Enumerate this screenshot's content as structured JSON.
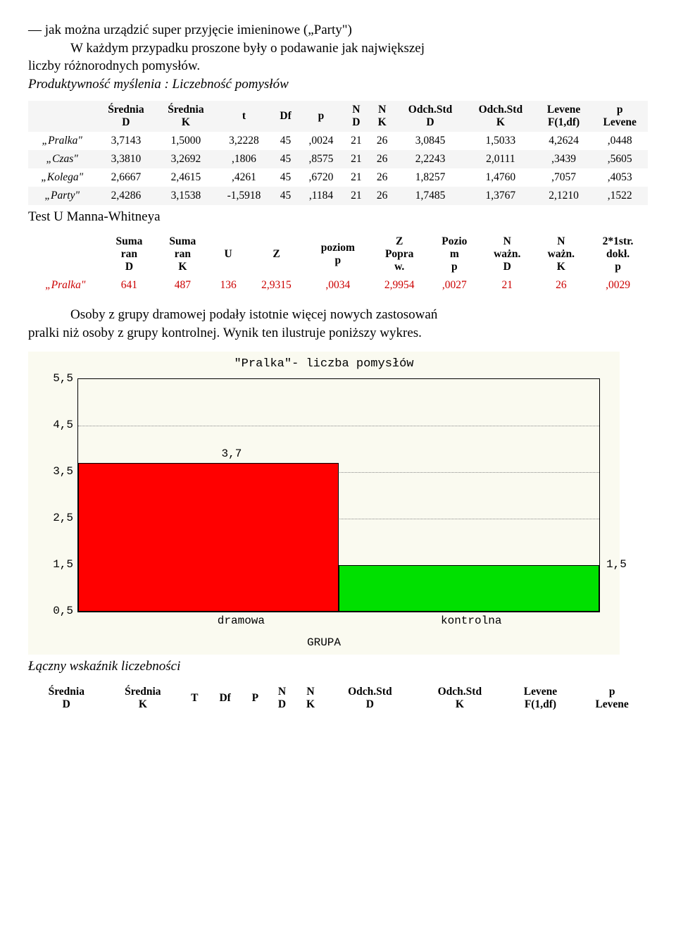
{
  "intro": {
    "line1": "— jak można urządzić super przyjęcie imieninowe  („Party\")",
    "line2": "W każdym przypadku proszone były o podawanie jak największej",
    "line3": "liczby różnorodnych pomysłów.",
    "line4": "Produktywność myślenia : Liczebność pomysłów"
  },
  "table1": {
    "headers": [
      "",
      "Średnia D",
      "Średnia K",
      "t",
      "Df",
      "p",
      "N D",
      "N K",
      "Odch.Std D",
      "Odch.Std K",
      "Levene F(1,df)",
      "p Levene"
    ],
    "rows": [
      {
        "label": "„Pralka\"",
        "vals": [
          "3,7143",
          "1,5000",
          "3,2228",
          "45",
          ",0024",
          "21",
          "26",
          "3,0845",
          "1,5033",
          "4,2624",
          ",0448"
        ]
      },
      {
        "label": "„Czas\"",
        "vals": [
          "3,3810",
          "3,2692",
          ",1806",
          "45",
          ",8575",
          "21",
          "26",
          "2,2243",
          "2,0111",
          ",3439",
          ",5605"
        ]
      },
      {
        "label": "„Kolega\"",
        "vals": [
          "2,6667",
          "2,4615",
          ",4261",
          "45",
          ",6720",
          "21",
          "26",
          "1,8257",
          "1,4760",
          ",7057",
          ",4053"
        ]
      },
      {
        "label": "„Party\"",
        "vals": [
          "2,4286",
          "3,1538",
          "-1,5918",
          "45",
          ",1184",
          "21",
          "26",
          "1,7485",
          "1,3767",
          "2,1210",
          ",1522"
        ]
      }
    ]
  },
  "mw": {
    "title": "Test U Manna-Whitneya",
    "headers": [
      "",
      "Suma ran D",
      "Suma ran K",
      "U",
      "Z",
      "poziom p",
      "Z Popra w.",
      "Pozio m p",
      "N ważn. D",
      "N ważn. K",
      "2*1str. dokł. p"
    ],
    "row": {
      "label": "„Pralka\"",
      "vals": [
        "641",
        "487",
        "136",
        "2,9315",
        ",0034",
        "2,9954",
        ",0027",
        "21",
        "26",
        ",0029"
      ]
    }
  },
  "para": {
    "line1": "Osoby z grupy dramowej podały istotnie więcej nowych zastosowań",
    "line2": "pralki niż osoby z grupy kontrolnej. Wynik ten ilustruje poniższy wykres."
  },
  "chart": {
    "title": "\"Pralka\"- liczba pomysłów",
    "yticks": [
      {
        "label": "5,5",
        "val": 5.5
      },
      {
        "label": "4,5",
        "val": 4.5
      },
      {
        "label": "3,5",
        "val": 3.5
      },
      {
        "label": "2,5",
        "val": 2.5
      },
      {
        "label": "1,5",
        "val": 1.5
      },
      {
        "label": "0,5",
        "val": 0.5
      }
    ],
    "ymin": 0.5,
    "ymax": 5.5,
    "bar1": {
      "label": "dramowa",
      "value": 3.7,
      "value_label": "3,7",
      "color": "#ff0000"
    },
    "bar2": {
      "label": "kontrolna",
      "value": 1.5,
      "value_label": "1,5",
      "color": "#00e000"
    },
    "axis_label": "GRUPA"
  },
  "footer": {
    "title": "Łączny wskaźnik liczebności",
    "headers": [
      "Średnia D",
      "Średnia K",
      "T",
      "Df",
      "P",
      "N D",
      "N K",
      "Odch.Std D",
      "Odch.Std K",
      "Levene F(1,df)",
      "p Levene"
    ]
  }
}
